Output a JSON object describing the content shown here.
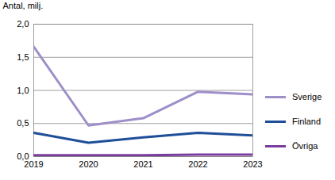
{
  "chart_data": {
    "type": "line",
    "y_label": "Antal, milj.",
    "x": [
      2019,
      2020,
      2021,
      2022,
      2023
    ],
    "xlim": [
      2019,
      2023
    ],
    "xticks": [
      2019,
      2020,
      2021,
      2022,
      2023
    ],
    "ylim": [
      0,
      2
    ],
    "yticks": [
      {
        "value": 0,
        "label": "0,0"
      },
      {
        "value": 0.5,
        "label": "0,5"
      },
      {
        "value": 1,
        "label": "1,0"
      },
      {
        "value": 1.5,
        "label": "1,5"
      },
      {
        "value": 2,
        "label": "2,0"
      }
    ],
    "grid": true,
    "legend": "right",
    "series": [
      {
        "name": "Sverige",
        "color": "#9e8fc9",
        "values": [
          1.66,
          0.47,
          0.58,
          0.98,
          0.94
        ]
      },
      {
        "name": "Finland",
        "color": "#1f4e99",
        "values": [
          0.36,
          0.21,
          0.29,
          0.36,
          0.32
        ]
      },
      {
        "name": "Övriga",
        "color": "#7a3d9e",
        "values": [
          0.02,
          0.02,
          0.02,
          0.03,
          0.03
        ]
      }
    ]
  }
}
